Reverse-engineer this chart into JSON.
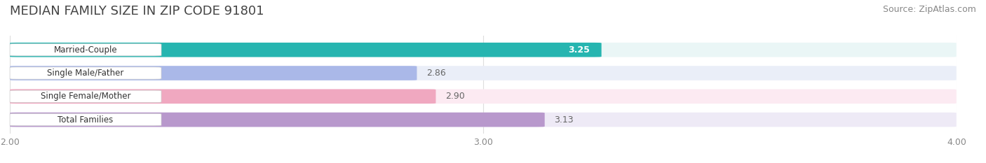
{
  "title": "MEDIAN FAMILY SIZE IN ZIP CODE 91801",
  "source": "Source: ZipAtlas.com",
  "categories": [
    "Married-Couple",
    "Single Male/Father",
    "Single Female/Mother",
    "Total Families"
  ],
  "values": [
    3.25,
    2.86,
    2.9,
    3.13
  ],
  "bar_colors": [
    "#26b5b0",
    "#aab8e8",
    "#f0a8c0",
    "#b898cc"
  ],
  "bar_bg_colors": [
    "#eaf6f6",
    "#eaeef8",
    "#fceaf2",
    "#eeeaf6"
  ],
  "value_label_colors": [
    "#ffffff",
    "#666666",
    "#666666",
    "#666666"
  ],
  "xlim": [
    2.0,
    4.0
  ],
  "xticks": [
    2.0,
    3.0,
    4.0
  ],
  "xtick_labels": [
    "2.00",
    "3.00",
    "4.00"
  ],
  "title_fontsize": 13,
  "source_fontsize": 9,
  "bar_label_fontsize": 9,
  "category_fontsize": 8.5,
  "background_color": "#ffffff",
  "grid_color": "#dddddd",
  "category_text_color": "#333333",
  "value_text_color_dark": "#666666"
}
